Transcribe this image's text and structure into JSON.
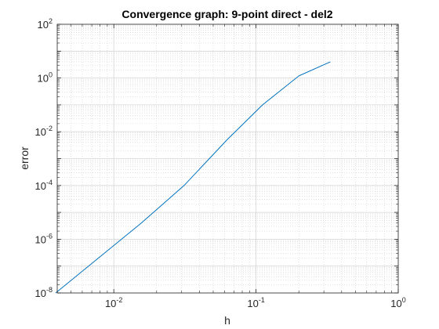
{
  "chart_data": {
    "type": "line",
    "title": "Convergence graph: 9-point direct - del2",
    "xlabel": "h",
    "ylabel": "error",
    "xscale": "log",
    "yscale": "log",
    "xlim": [
      0.004,
      1
    ],
    "ylim": [
      1e-08,
      100
    ],
    "grid": true,
    "minor_grid": true,
    "x_ticks": [
      {
        "value": 0.01,
        "base": "10",
        "exp": "-2"
      },
      {
        "value": 0.1,
        "base": "10",
        "exp": "-1"
      },
      {
        "value": 1,
        "base": "10",
        "exp": "0"
      }
    ],
    "y_ticks": [
      {
        "value": 1e-08,
        "base": "10",
        "exp": "-8"
      },
      {
        "value": 1e-06,
        "base": "10",
        "exp": "-6"
      },
      {
        "value": 0.0001,
        "base": "10",
        "exp": "-4"
      },
      {
        "value": 0.01,
        "base": "10",
        "exp": "-2"
      },
      {
        "value": 1,
        "base": "10",
        "exp": "0"
      },
      {
        "value": 100,
        "base": "10",
        "exp": "2"
      }
    ],
    "series": [
      {
        "color": "#0072BD",
        "x": [
          0.0039,
          0.0078,
          0.0156,
          0.0312,
          0.0625,
          0.1111,
          0.2,
          0.3333
        ],
        "y": [
          1e-08,
          2e-07,
          4e-06,
          0.0001,
          0.005,
          0.1,
          1.2,
          4.0
        ]
      }
    ]
  }
}
